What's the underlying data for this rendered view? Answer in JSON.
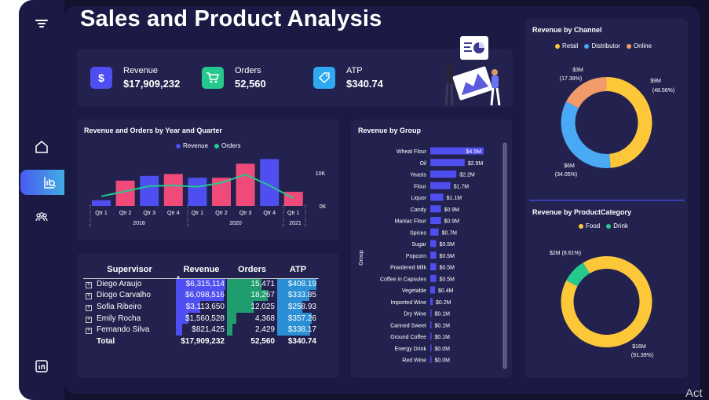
{
  "title": "Sales and Product Analysis",
  "kpis": [
    {
      "label": "Revenue",
      "value": "$17,909,232",
      "icon": "dollar-icon",
      "color": "#4f4ef0"
    },
    {
      "label": "Orders",
      "value": "52,560",
      "icon": "cart-icon",
      "color": "#25c98e"
    },
    {
      "label": "ATP",
      "value": "$340.74",
      "icon": "price-tag-icon",
      "color": "#2ea8ee"
    }
  ],
  "combo": {
    "title": "Revenue and Orders by Year and Quarter",
    "legend": [
      "Revenue",
      "Orders"
    ],
    "y_ticks": [
      "10K",
      "0K"
    ],
    "quarters": [
      "Qtr 1",
      "Qtr 2",
      "Qtr 3",
      "Qtr 4",
      "Qtr 1",
      "Qtr 2",
      "Qtr 3",
      "Qtr 4",
      "Qtr 1"
    ],
    "years": [
      "2018",
      "2020",
      "2021"
    ]
  },
  "table": {
    "headers": [
      "Supervisor",
      "Revenue",
      "Orders",
      "ATP"
    ],
    "rows": [
      {
        "name": "Diego Araujo",
        "revenue": "$6,315,114",
        "orders": "15,471",
        "atp": "$408.19",
        "rev_frac": 1.0,
        "ord_frac": 0.85,
        "atp_frac": 1.0
      },
      {
        "name": "Diogo Carvalho",
        "revenue": "$6,098,516",
        "orders": "18,267",
        "atp": "$333.85",
        "rev_frac": 0.97,
        "ord_frac": 1.0,
        "atp_frac": 0.82
      },
      {
        "name": "Sofia Ribeiro",
        "revenue": "$3,113,650",
        "orders": "12,025",
        "atp": "$258.93",
        "rev_frac": 0.49,
        "ord_frac": 0.66,
        "atp_frac": 0.63
      },
      {
        "name": "Emily Rocha",
        "revenue": "$1,560,528",
        "orders": "4,368",
        "atp": "$357.26",
        "rev_frac": 0.25,
        "ord_frac": 0.24,
        "atp_frac": 0.88
      },
      {
        "name": "Fernando Silva",
        "revenue": "$821,425",
        "orders": "2,429",
        "atp": "$338.17",
        "rev_frac": 0.13,
        "ord_frac": 0.13,
        "atp_frac": 0.83
      }
    ],
    "total": {
      "name": "Total",
      "revenue": "$17,909,232",
      "orders": "52,560",
      "atp": "$340.74"
    }
  },
  "group_title": "Revenue by Group",
  "group_axis": "Group",
  "channel": {
    "title": "Revenue by Channel",
    "labels": [
      {
        "value": "$9M",
        "pct": "(48.56%)"
      },
      {
        "value": "$6M",
        "pct": "(34.05%)"
      },
      {
        "value": "$3M",
        "pct": "(17.39%)"
      }
    ]
  },
  "category": {
    "title": "Revenue by ProductCategory",
    "labels": [
      {
        "value": "$16M",
        "pct": "(91.39%)"
      },
      {
        "value": "$2M (8.61%)",
        "pct": ""
      }
    ]
  },
  "watermark": "Act",
  "colors": {
    "bg": "#12112e",
    "panel": "#1b1a45",
    "card": "#23224f",
    "revenue": "#4f4ef0",
    "orders": "#25c98e",
    "atp": "#2ea8ee",
    "pink": "#f04a7a",
    "yellow": "#fdc73a",
    "blue": "#4aa9f5",
    "orange": "#f29b6a"
  },
  "chart_data": [
    {
      "type": "bar",
      "title": "Revenue and Orders by Year and Quarter",
      "categories": [
        "2018 Qtr 1",
        "2018 Qtr 2",
        "2018 Qtr 3",
        "2018 Qtr 4",
        "2020 Qtr 1",
        "2020 Qtr 2",
        "2020 Qtr 3",
        "2020 Qtr 4",
        "2021 Qtr 1"
      ],
      "series": [
        {
          "name": "Revenue",
          "values": [
            0.6,
            2.7,
            3.2,
            3.4,
            3.0,
            3.0,
            4.5,
            5.0,
            1.5
          ]
        },
        {
          "name": "Orders",
          "values": [
            2900,
            4400,
            6000,
            6200,
            5800,
            7000,
            9500,
            6200,
            2300
          ]
        }
      ],
      "bar_colors": [
        "#4f4ef0",
        "#f04a7a",
        "#4f4ef0",
        "#f04a7a",
        "#4f4ef0",
        "#f04a7a",
        "#f04a7a",
        "#4f4ef0",
        "#f04a7a"
      ],
      "y_ticks": [
        "0K",
        "10K"
      ]
    },
    {
      "type": "bar",
      "title": "Revenue by Group",
      "orientation": "horizontal",
      "ylabel": "Group",
      "categories": [
        "Wheat Flour",
        "Oil",
        "Yeasts",
        "Flour",
        "Liquor",
        "Candy",
        "Maniac Flour",
        "Spices",
        "Sugar",
        "Popcorn",
        "Powdered Milk",
        "Coffee in Capsules",
        "Vegetable",
        "Imported Wine",
        "Dry Wine",
        "Canned Sweet",
        "Ground Coffee",
        "Energy Drink",
        "Red Wine"
      ],
      "values": [
        4.5,
        2.9,
        2.2,
        1.7,
        1.1,
        0.9,
        0.9,
        0.7,
        0.5,
        0.5,
        0.5,
        0.5,
        0.4,
        0.2,
        0.1,
        0.1,
        0.1,
        0.0,
        0.0
      ],
      "labels": [
        "$4.5M",
        "$2.9M",
        "$2.2M",
        "$1.7M",
        "$1.1M",
        "$0.9M",
        "$0.9M",
        "$0.7M",
        "$0.5M",
        "$0.5M",
        "$0.5M",
        "$0.5M",
        "$0.4M",
        "$0.2M",
        "$0.1M",
        "$0.1M",
        "$0.1M",
        "$0.0M",
        "$0.0M"
      ]
    },
    {
      "type": "pie",
      "title": "Revenue by Channel",
      "donut": true,
      "categories": [
        "Retail",
        "Distributor",
        "Online"
      ],
      "values": [
        48.56,
        34.05,
        17.39
      ],
      "colors": [
        "#fdc73a",
        "#4aa9f5",
        "#f29b6a"
      ]
    },
    {
      "type": "pie",
      "title": "Revenue by ProductCategory",
      "donut": true,
      "categories": [
        "Food",
        "Drink"
      ],
      "values": [
        91.39,
        8.61
      ],
      "colors": [
        "#fdc73a",
        "#25c98e"
      ]
    }
  ]
}
